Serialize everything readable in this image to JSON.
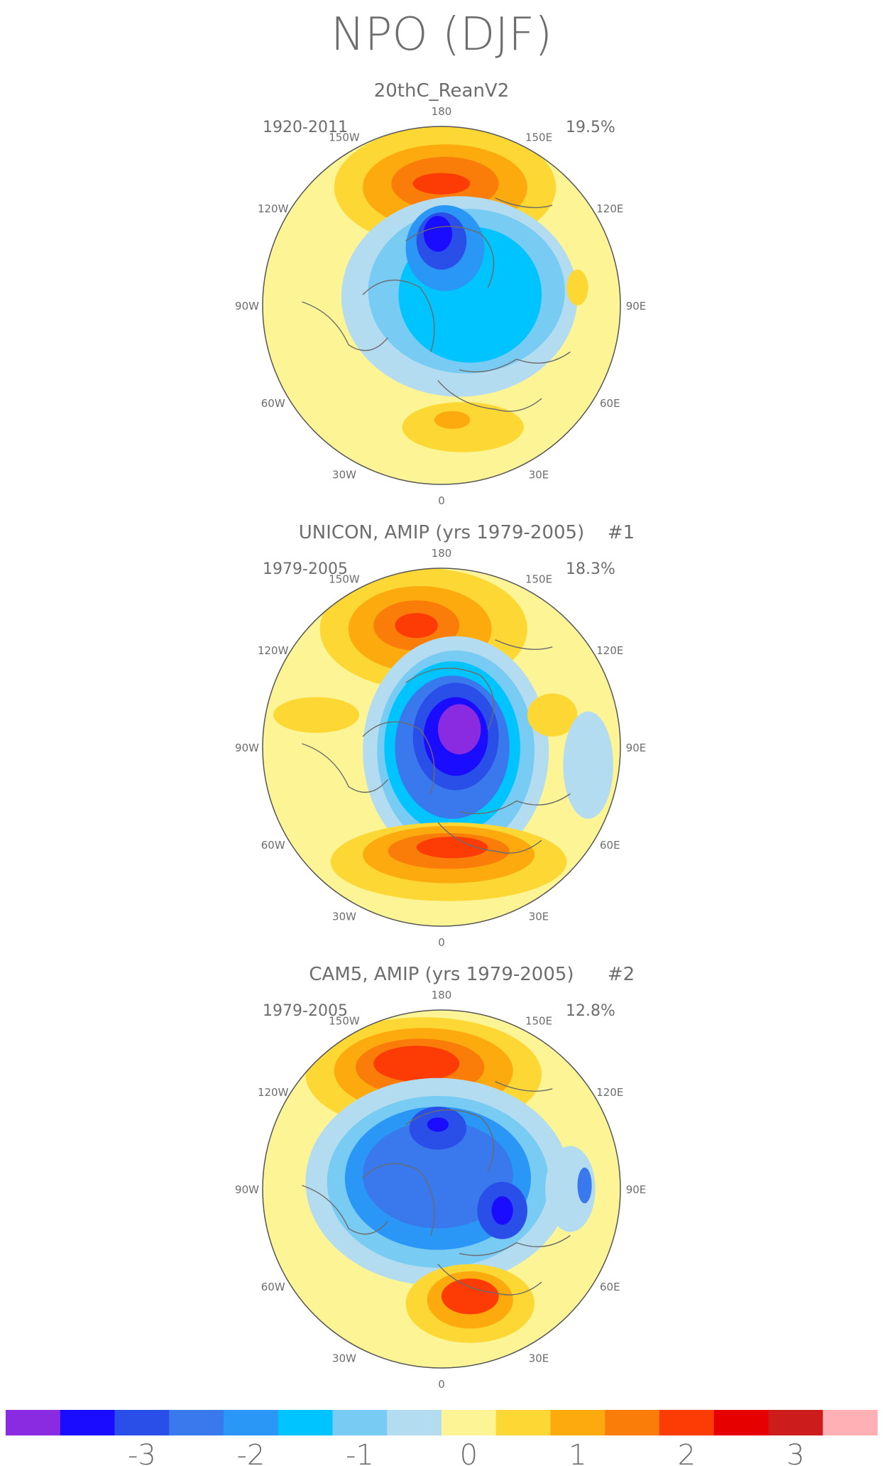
{
  "title": "NPO (DJF)",
  "colors": {
    "ocean_base": "#fdf595",
    "coast": "#6b6b6b",
    "text": "#6d6d6d"
  },
  "longitude_labels": [
    "180",
    "150E",
    "120E",
    "90E",
    "60E",
    "30E",
    "0",
    "30W",
    "60W",
    "90W",
    "120W",
    "150W"
  ],
  "panels": [
    {
      "id": "reanalysis",
      "subtitle": "20thC_ReanV2",
      "period": "1920-2011",
      "variance": "19.5%",
      "number": ""
    },
    {
      "id": "unicon",
      "subtitle": "UNICON, AMIP (yrs 1979-2005)",
      "period": "1979-2005",
      "variance": "18.3%",
      "number": "#1"
    },
    {
      "id": "cam5",
      "subtitle": "CAM5, AMIP (yrs 1979-2005)",
      "period": "1979-2005",
      "variance": "12.8%",
      "number": "#2"
    }
  ],
  "colorbar": {
    "colors": [
      "#8a2be2",
      "#1a0dff",
      "#2a4fe8",
      "#3a78ee",
      "#2a96f5",
      "#00c4ff",
      "#78cbf2",
      "#b4dcf0",
      "#fdf595",
      "#fdd835",
      "#fcaa0d",
      "#fa7d0a",
      "#fc3c04",
      "#e60000",
      "#cc1c1c",
      "#ffb0b4"
    ],
    "tick_labels": [
      "-3",
      "-2",
      "-1",
      "0",
      "1",
      "2",
      "3"
    ],
    "tick_values": [
      -3,
      -2,
      -1,
      0,
      1,
      2,
      3
    ]
  }
}
